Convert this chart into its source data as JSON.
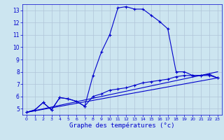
{
  "title": "Graphe des températures (°c)",
  "bg_color": "#cce5f0",
  "grid_color": "#b0c4d8",
  "line_color": "#0000cc",
  "ylim": [
    4.5,
    13.5
  ],
  "xlim": [
    -0.5,
    23.5
  ],
  "yticks": [
    5,
    6,
    7,
    8,
    9,
    10,
    11,
    12,
    13
  ],
  "xticks": [
    0,
    1,
    2,
    3,
    4,
    5,
    6,
    7,
    8,
    9,
    10,
    11,
    12,
    13,
    14,
    15,
    16,
    17,
    18,
    19,
    20,
    21,
    22,
    23
  ],
  "line1_x": [
    0,
    1,
    2,
    3,
    4,
    5,
    6,
    7,
    8,
    9,
    10,
    11,
    12,
    13,
    14,
    15,
    16,
    17,
    18,
    19,
    20,
    21,
    22,
    23
  ],
  "line1_y": [
    4.7,
    4.9,
    5.5,
    4.9,
    5.9,
    5.8,
    5.6,
    5.2,
    7.7,
    9.6,
    11.0,
    13.2,
    13.3,
    13.1,
    13.1,
    12.6,
    12.1,
    11.5,
    8.0,
    8.0,
    7.7,
    7.7,
    7.7,
    7.5
  ],
  "line2_x": [
    0,
    1,
    2,
    3,
    4,
    5,
    6,
    7,
    8,
    9,
    10,
    11,
    12,
    13,
    14,
    15,
    16,
    17,
    18,
    19,
    20,
    21,
    22,
    23
  ],
  "line2_y": [
    4.7,
    4.9,
    5.5,
    4.9,
    5.9,
    5.8,
    5.6,
    5.2,
    6.0,
    6.2,
    6.5,
    6.6,
    6.7,
    6.9,
    7.1,
    7.2,
    7.3,
    7.4,
    7.6,
    7.7,
    7.7,
    7.7,
    7.8,
    7.5
  ],
  "line3_x": [
    0,
    23
  ],
  "line3_y": [
    4.7,
    7.5
  ],
  "line4_x": [
    0,
    23
  ],
  "line4_y": [
    4.7,
    8.0
  ]
}
